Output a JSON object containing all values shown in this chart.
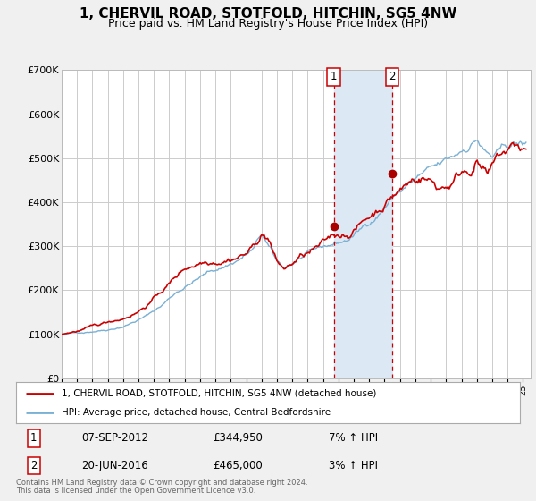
{
  "title": "1, CHERVIL ROAD, STOTFOLD, HITCHIN, SG5 4NW",
  "subtitle": "Price paid vs. HM Land Registry's House Price Index (HPI)",
  "ylim": [
    0,
    700000
  ],
  "yticks": [
    0,
    100000,
    200000,
    300000,
    400000,
    500000,
    600000,
    700000
  ],
  "ytick_labels": [
    "£0",
    "£100K",
    "£200K",
    "£300K",
    "£400K",
    "£500K",
    "£600K",
    "£700K"
  ],
  "xlim_start": 1995.0,
  "xlim_end": 2025.5,
  "background_color": "#f0f0f0",
  "plot_background_color": "#ffffff",
  "grid_color": "#cccccc",
  "sale1_date": 2012.69,
  "sale1_price": 344950,
  "sale1_label": "1",
  "sale2_date": 2016.47,
  "sale2_price": 465000,
  "sale2_label": "2",
  "vline_color": "#cc0000",
  "vspan_color": "#dce9f5",
  "marker_color": "#aa0000",
  "hpi_line_color": "#7ab0d4",
  "price_line_color": "#cc0000",
  "legend_label_price": "1, CHERVIL ROAD, STOTFOLD, HITCHIN, SG5 4NW (detached house)",
  "legend_label_hpi": "HPI: Average price, detached house, Central Bedfordshire",
  "table_row1": [
    "1",
    "07-SEP-2012",
    "£344,950",
    "7% ↑ HPI"
  ],
  "table_row2": [
    "2",
    "20-JUN-2016",
    "£465,000",
    "3% ↑ HPI"
  ],
  "footer_line1": "Contains HM Land Registry data © Crown copyright and database right 2024.",
  "footer_line2": "This data is licensed under the Open Government Licence v3.0.",
  "title_fontsize": 11,
  "subtitle_fontsize": 9
}
